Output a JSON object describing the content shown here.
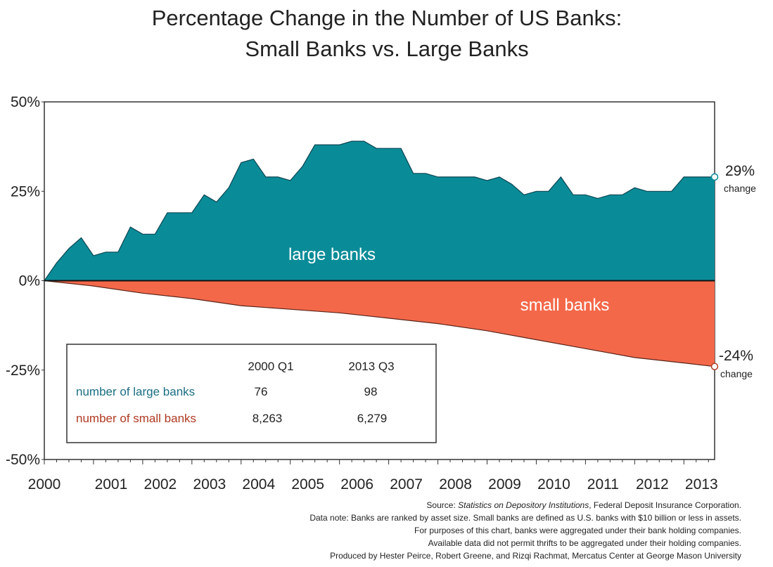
{
  "colors": {
    "large_banks": "#0a8c98",
    "small_banks": "#f4684a",
    "large_label": "#1a6d82",
    "small_label": "#b03a22"
  },
  "chart_data": {
    "type": "area",
    "title": [
      "Percentage Change in the Number of US Banks:",
      "Small Banks vs. Large Banks"
    ],
    "xlabel": "",
    "ylabel": "",
    "x_tick_labels": [
      "2000",
      "2001",
      "2002",
      "2003",
      "2004",
      "2005",
      "2006",
      "2007",
      "2008",
      "2009",
      "2010",
      "2011",
      "2012",
      "2013"
    ],
    "y_tick_labels": [
      "50%",
      "25%",
      "0%",
      "-25%",
      "-50%"
    ],
    "xlim": [
      2000.0,
      2013.625
    ],
    "ylim": [
      -50,
      50
    ],
    "grid": false,
    "legend": "none",
    "series": [
      {
        "name": "large banks",
        "x": [
          2000.0,
          2000.25,
          2000.5,
          2000.75,
          2001.0,
          2001.25,
          2001.5,
          2001.75,
          2002.0,
          2002.25,
          2002.5,
          2002.75,
          2003.0,
          2003.25,
          2003.5,
          2003.75,
          2004.0,
          2004.25,
          2004.5,
          2004.75,
          2005.0,
          2005.25,
          2005.5,
          2005.75,
          2006.0,
          2006.25,
          2006.5,
          2006.75,
          2007.0,
          2007.25,
          2007.5,
          2007.75,
          2008.0,
          2008.25,
          2008.5,
          2008.75,
          2009.0,
          2009.25,
          2009.5,
          2009.75,
          2010.0,
          2010.25,
          2010.5,
          2010.75,
          2011.0,
          2011.25,
          2011.5,
          2011.75,
          2012.0,
          2012.25,
          2012.5,
          2012.75,
          2013.0,
          2013.25,
          2013.625
        ],
        "values": [
          0,
          5,
          9,
          12,
          7,
          8,
          8,
          15,
          13,
          13,
          19,
          19,
          19,
          24,
          22,
          26,
          33,
          34,
          29,
          29,
          28,
          32,
          38,
          38,
          38,
          39,
          39,
          37,
          37,
          37,
          30,
          30,
          29,
          29,
          29,
          29,
          28,
          29,
          27,
          24,
          25,
          25,
          29,
          24,
          24,
          23,
          24,
          24,
          26,
          25,
          25,
          25,
          29,
          29,
          29
        ],
        "end_label": "29%",
        "end_sublabel": "change"
      },
      {
        "name": "small banks",
        "x": [
          2000.0,
          2001.0,
          2002.0,
          2003.0,
          2004.0,
          2005.0,
          2006.0,
          2007.0,
          2008.0,
          2009.0,
          2010.0,
          2011.0,
          2012.0,
          2013.0,
          2013.625
        ],
        "values": [
          0,
          -1.5,
          -3.5,
          -5,
          -7,
          -8,
          -9,
          -10.5,
          -12,
          -14,
          -16.5,
          -19,
          -21.5,
          -23,
          -24
        ],
        "end_label": "-24%",
        "end_sublabel": "change"
      }
    ],
    "table": {
      "columns": [
        "2000 Q1",
        "2013 Q3"
      ],
      "rows": [
        {
          "label": "number of large banks",
          "values": [
            "76",
            "98"
          ]
        },
        {
          "label": "number of small banks",
          "values": [
            "8,263",
            "6,279"
          ]
        }
      ]
    }
  },
  "footnotes": {
    "source_prefix": "Source: ",
    "source_italic": "Statistics on Depository Institutions",
    "source_suffix": ", Federal Deposit Insurance Corporation.",
    "line2": "Data note: Banks are ranked by asset size. Small banks are defined as U.S. banks with $10 billion or less in assets.",
    "line3": "For purposes of this chart, banks were aggregated under their bank holding companies.",
    "line4": "Available data did not permit thrifts to be aggregated under their holding companies.",
    "line5": "Produced by Hester Peirce, Robert Greene, and Rizqi Rachmat, Mercatus Center at George Mason University"
  }
}
